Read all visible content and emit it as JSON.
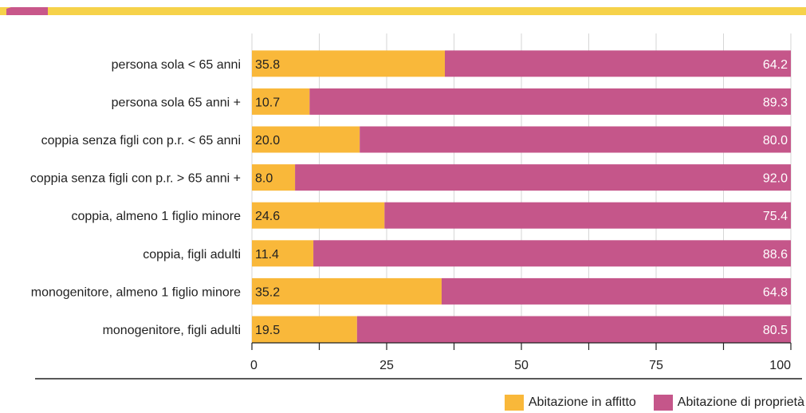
{
  "colors": {
    "accent_bar": "#f6d24a",
    "accent_marker": "#c8578a",
    "affitto": "#f9b83a",
    "proprieta": "#c5568a",
    "grid": "#d6d6d6",
    "axis": "#222222"
  },
  "chart_data": {
    "type": "bar",
    "orientation": "horizontal",
    "stacked": true,
    "categories": [
      "persona sola < 65 anni",
      "persona sola 65 anni +",
      "coppia senza figli con p.r. < 65 anni",
      "coppia senza figli con p.r. > 65 anni +",
      "coppia, almeno 1 figlio minore",
      "coppia, figli adulti",
      "monogenitore, almeno 1 figlio minore",
      "monogenitore, figli adulti"
    ],
    "series": [
      {
        "name": "Abitazione in affitto",
        "values": [
          35.8,
          10.7,
          20.0,
          8.0,
          24.6,
          11.4,
          35.2,
          19.5
        ]
      },
      {
        "name": "Abitazione di proprietà",
        "values": [
          64.2,
          89.3,
          80.0,
          92.0,
          75.4,
          88.6,
          64.8,
          80.5
        ]
      }
    ],
    "value_labels": [
      [
        "35.8",
        "10.7",
        "20.0",
        "8.0",
        "24.6",
        "11.4",
        "35.2",
        "19.5"
      ],
      [
        "64.2",
        "89.3",
        "80.0",
        "92.0",
        "75.4",
        "88.6",
        "64.8",
        "80.5"
      ]
    ],
    "xlim": [
      0,
      100
    ],
    "x_ticks": [
      0,
      25,
      50,
      75,
      100
    ],
    "x_tick_labels": [
      "0",
      "25",
      "50",
      "75",
      "100"
    ],
    "x_minor_ticks": [
      12.5,
      37.5,
      62.5,
      87.5
    ],
    "grid": true,
    "legend_position": "bottom-right",
    "title": "",
    "xlabel": "",
    "ylabel": ""
  }
}
